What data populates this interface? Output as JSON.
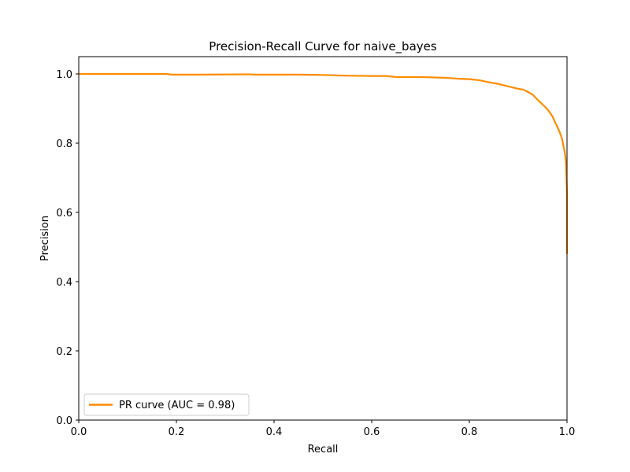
{
  "chart_data": {
    "type": "line",
    "title": "Precision-Recall Curve for naive_bayes",
    "xlabel": "Recall",
    "ylabel": "Precision",
    "xlim": [
      0.0,
      1.0
    ],
    "ylim": [
      0.0,
      1.05
    ],
    "x_ticks": [
      "0.0",
      "0.2",
      "0.4",
      "0.6",
      "0.8",
      "1.0"
    ],
    "y_ticks": [
      "0.0",
      "0.2",
      "0.4",
      "0.6",
      "0.8",
      "1.0"
    ],
    "grid": false,
    "legend_position": "lower-left",
    "series": [
      {
        "name": "PR curve (AUC = 0.98)",
        "color": "#ff8c00",
        "x": [
          0.0,
          0.1,
          0.18,
          0.19,
          0.25,
          0.35,
          0.36,
          0.45,
          0.5,
          0.55,
          0.6,
          0.63,
          0.65,
          0.7,
          0.75,
          0.78,
          0.8,
          0.82,
          0.84,
          0.86,
          0.88,
          0.9,
          0.91,
          0.92,
          0.93,
          0.94,
          0.95,
          0.96,
          0.97,
          0.975,
          0.98,
          0.985,
          0.99,
          0.993,
          0.996,
          0.998,
          0.999,
          1.0,
          1.0,
          1.0
        ],
        "y": [
          1.0,
          1.0,
          1.0,
          0.998,
          0.998,
          0.999,
          0.998,
          0.998,
          0.997,
          0.995,
          0.994,
          0.994,
          0.991,
          0.991,
          0.989,
          0.986,
          0.985,
          0.982,
          0.976,
          0.971,
          0.964,
          0.957,
          0.955,
          0.948,
          0.94,
          0.925,
          0.912,
          0.898,
          0.878,
          0.862,
          0.848,
          0.832,
          0.812,
          0.79,
          0.77,
          0.74,
          0.7,
          0.65,
          0.56,
          0.48
        ]
      }
    ]
  }
}
